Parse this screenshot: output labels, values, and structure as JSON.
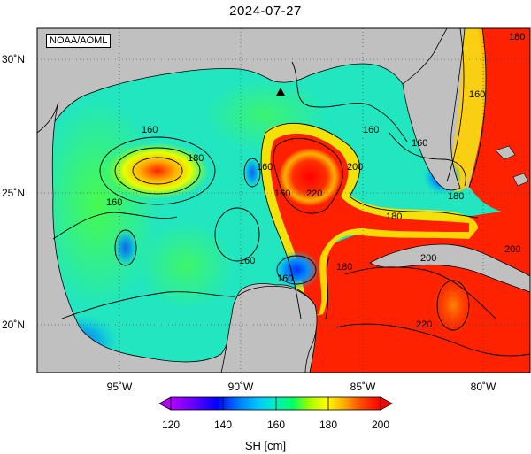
{
  "title": "2024-07-27",
  "credit": "NOAA/AOML",
  "axes": {
    "lat_ticks": [
      "30˚N",
      "25˚N",
      "20˚N"
    ],
    "lon_ticks": [
      "95˚W",
      "90˚W",
      "85˚W",
      "80˚W"
    ]
  },
  "contour_labels": [
    "160",
    "180",
    "160",
    "160",
    "160",
    "160",
    "160",
    "180",
    "160",
    "200",
    "220",
    "160",
    "180",
    "160",
    "200",
    "220",
    "180",
    "180",
    "200"
  ],
  "marker": "triangle",
  "colorbar": {
    "ticks": [
      "120",
      "140",
      "160",
      "180",
      "200"
    ],
    "label": "SH [cm]",
    "colors": [
      "#b400ff",
      "#5a00ff",
      "#0000ff",
      "#0064ff",
      "#00b4ff",
      "#00e6c8",
      "#00ff64",
      "#64ff00",
      "#c8ff00",
      "#ffff00",
      "#ffc800",
      "#ff8c00",
      "#ff3c00",
      "#ff0000"
    ]
  },
  "colors": {
    "land": "#c0c0c0",
    "ocean_low": "#2a7cff",
    "ocean_mid": "#3ff08a",
    "ocean_high": "#ff1a00"
  }
}
